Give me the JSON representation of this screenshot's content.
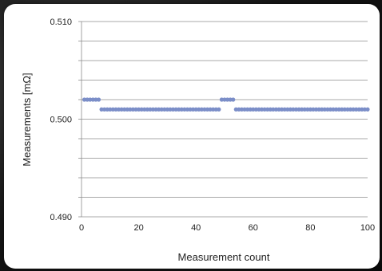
{
  "chart_data": {
    "type": "scatter",
    "title": "",
    "xlabel": "Measurement count",
    "ylabel": "Measurements [mΩ]",
    "xlim": [
      0,
      100
    ],
    "ylim": [
      0.49,
      0.51
    ],
    "x_ticks": [
      "0",
      "20",
      "40",
      "60",
      "80",
      "100"
    ],
    "y_ticks": [
      "0.490",
      "0.500",
      "0.510"
    ],
    "grid": "horizontal",
    "marker_color": "#7b8ec8",
    "series": [
      {
        "x": [
          1,
          2,
          3,
          4,
          5,
          6,
          7,
          8,
          9,
          10,
          11,
          12,
          13,
          14,
          15,
          16,
          17,
          18,
          19,
          20,
          21,
          22,
          23,
          24,
          25,
          26,
          27,
          28,
          29,
          30,
          31,
          32,
          33,
          34,
          35,
          36,
          37,
          38,
          39,
          40,
          41,
          42,
          43,
          44,
          45,
          46,
          47,
          48,
          49,
          50,
          51,
          52,
          53,
          54,
          55,
          56,
          57,
          58,
          59,
          60,
          61,
          62,
          63,
          64,
          65,
          66,
          67,
          68,
          69,
          70,
          71,
          72,
          73,
          74,
          75,
          76,
          77,
          78,
          79,
          80,
          81,
          82,
          83,
          84,
          85,
          86,
          87,
          88,
          89,
          90,
          91,
          92,
          93,
          94,
          95,
          96,
          97,
          98,
          99,
          100
        ],
        "values": [
          0.502,
          0.502,
          0.502,
          0.502,
          0.502,
          0.502,
          0.501,
          0.501,
          0.501,
          0.501,
          0.501,
          0.501,
          0.501,
          0.501,
          0.501,
          0.501,
          0.501,
          0.501,
          0.501,
          0.501,
          0.501,
          0.501,
          0.501,
          0.501,
          0.501,
          0.501,
          0.501,
          0.501,
          0.501,
          0.501,
          0.501,
          0.501,
          0.501,
          0.501,
          0.501,
          0.501,
          0.501,
          0.501,
          0.501,
          0.501,
          0.501,
          0.501,
          0.501,
          0.501,
          0.501,
          0.501,
          0.501,
          0.501,
          0.502,
          0.502,
          0.502,
          0.502,
          0.502,
          0.501,
          0.501,
          0.501,
          0.501,
          0.501,
          0.501,
          0.501,
          0.501,
          0.501,
          0.501,
          0.501,
          0.501,
          0.501,
          0.501,
          0.501,
          0.501,
          0.501,
          0.501,
          0.501,
          0.501,
          0.501,
          0.501,
          0.501,
          0.501,
          0.501,
          0.501,
          0.501,
          0.501,
          0.501,
          0.501,
          0.501,
          0.501,
          0.501,
          0.501,
          0.501,
          0.501,
          0.501,
          0.501,
          0.501,
          0.501,
          0.501,
          0.501,
          0.501,
          0.501,
          0.501,
          0.501,
          0.501
        ]
      }
    ]
  }
}
